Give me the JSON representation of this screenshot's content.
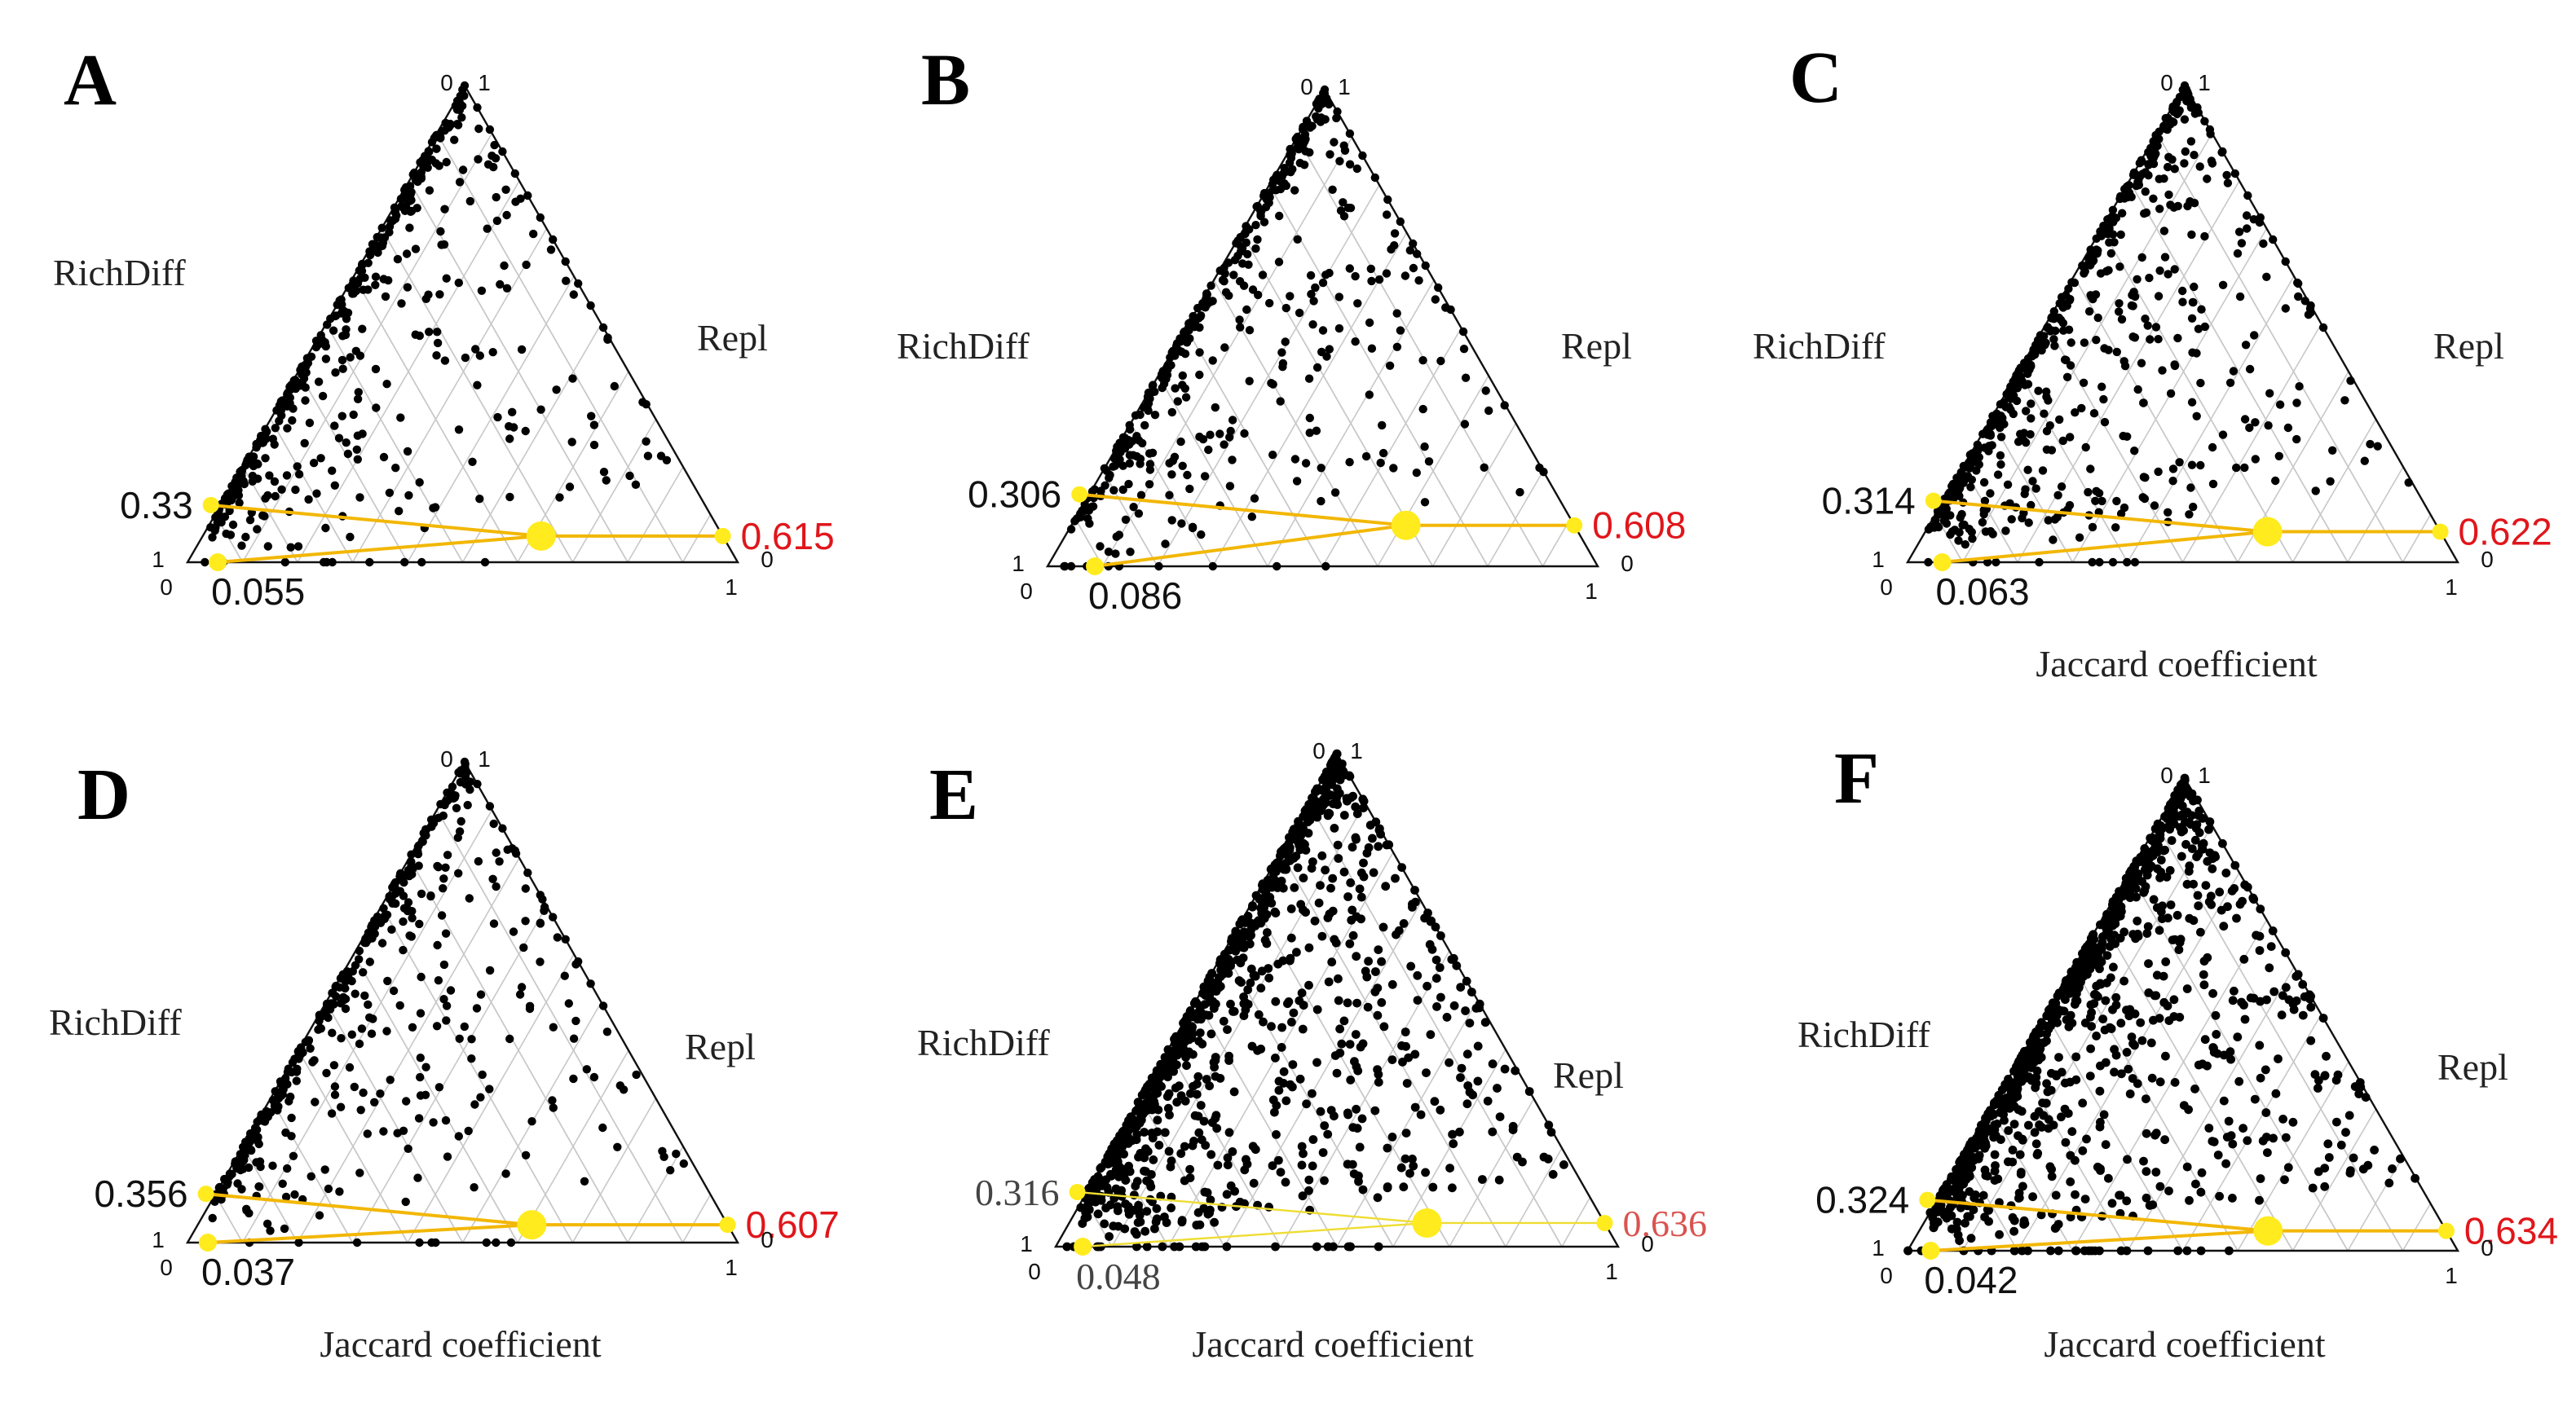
{
  "colors": {
    "point": "#000000",
    "highlight": "#FFEB1E",
    "path": "#F2B705",
    "path_thin": "#EEDD33",
    "grid": "#C8C8C8",
    "frame": "#111111",
    "repl_value": "#E0161B",
    "repl_value_e": "#D9534F"
  },
  "chart_data": [
    {
      "type": "ternary-scatter",
      "panel": "A",
      "left_axis": "RichDiff",
      "right_axis": "Repl",
      "xlabel": "",
      "corner_ticks": {
        "top_left": "0",
        "top_right": "1",
        "left_top": "1",
        "left_bottom": "0",
        "right_top": "0",
        "right_bottom": "1"
      },
      "mean": {
        "jaccard_label": "0.055",
        "richdiff_label": "0.33",
        "repl_label": "0.615",
        "jaccard": 0.055,
        "richdiff": 0.33,
        "repl": 0.615
      },
      "point_density": "sparse"
    },
    {
      "type": "ternary-scatter",
      "panel": "B",
      "left_axis": "RichDiff",
      "right_axis": "Repl",
      "xlabel": "",
      "corner_ticks": {
        "top_left": "0",
        "top_right": "1",
        "left_top": "1",
        "left_bottom": "0",
        "right_top": "0",
        "right_bottom": "1"
      },
      "mean": {
        "jaccard_label": "0.086",
        "richdiff_label": "0.306",
        "repl_label": "0.608",
        "jaccard": 0.086,
        "richdiff": 0.306,
        "repl": 0.608
      },
      "point_density": "sparse"
    },
    {
      "type": "ternary-scatter",
      "panel": "C",
      "left_axis": "RichDiff",
      "right_axis": "Repl",
      "xlabel": "Jaccard coefficient",
      "corner_ticks": {
        "top_left": "0",
        "top_right": "1",
        "left_top": "1",
        "left_bottom": "0",
        "right_top": "0",
        "right_bottom": "1"
      },
      "mean": {
        "jaccard_label": "0.063",
        "richdiff_label": "0.314",
        "repl_label": "0.622",
        "jaccard": 0.063,
        "richdiff": 0.314,
        "repl": 0.622
      },
      "point_density": "medium"
    },
    {
      "type": "ternary-scatter",
      "panel": "D",
      "left_axis": "RichDiff",
      "right_axis": "Repl",
      "xlabel": "Jaccard coefficient",
      "corner_ticks": {
        "top_left": "0",
        "top_right": "1",
        "left_top": "1",
        "left_bottom": "0",
        "right_top": "0",
        "right_bottom": "1"
      },
      "mean": {
        "jaccard_label": "0.037",
        "richdiff_label": "0.356",
        "repl_label": "0.607",
        "jaccard": 0.037,
        "richdiff": 0.356,
        "repl": 0.607
      },
      "point_density": "sparse"
    },
    {
      "type": "ternary-scatter",
      "panel": "E",
      "left_axis": "RichDiff",
      "right_axis": "Repl",
      "xlabel": "Jaccard coefficient",
      "corner_ticks": {
        "top_left": "0",
        "top_right": "1",
        "left_top": "1",
        "left_bottom": "0",
        "right_top": "0",
        "right_bottom": "1"
      },
      "mean": {
        "jaccard_label": "0.048",
        "richdiff_label": "0.316",
        "repl_label": "0.636",
        "jaccard": 0.048,
        "richdiff": 0.316,
        "repl": 0.636
      },
      "point_density": "dense"
    },
    {
      "type": "ternary-scatter",
      "panel": "F",
      "left_axis": "RichDiff",
      "right_axis": "Repl",
      "xlabel": "Jaccard coefficient",
      "corner_ticks": {
        "top_left": "0",
        "top_right": "1",
        "left_top": "1",
        "left_bottom": "0",
        "right_top": "0",
        "right_bottom": "1"
      },
      "mean": {
        "jaccard_label": "0.042",
        "richdiff_label": "0.324",
        "repl_label": "0.634",
        "jaccard": 0.042,
        "richdiff": 0.324,
        "repl": 0.634
      },
      "point_density": "dense"
    }
  ]
}
